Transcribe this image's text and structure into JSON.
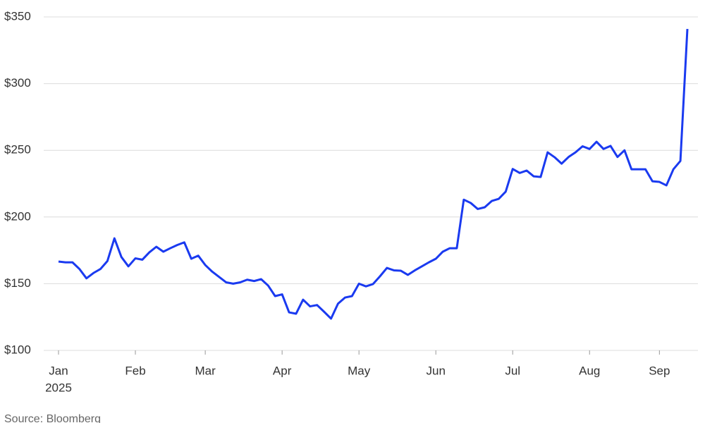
{
  "chart_data": {
    "type": "line",
    "ylim": [
      100,
      350
    ],
    "yticks": [
      {
        "value": 100,
        "label": "$100"
      },
      {
        "value": 150,
        "label": "$150"
      },
      {
        "value": 200,
        "label": "$200"
      },
      {
        "value": 250,
        "label": "$250"
      },
      {
        "value": 300,
        "label": "$300"
      },
      {
        "value": 350,
        "label": "$350"
      }
    ],
    "grid": true,
    "categories": [
      "Jan",
      null,
      null,
      null,
      null,
      null,
      null,
      null,
      null,
      null,
      null,
      "Feb",
      null,
      null,
      null,
      null,
      null,
      null,
      null,
      null,
      null,
      "Mar",
      null,
      null,
      null,
      null,
      null,
      null,
      null,
      null,
      null,
      null,
      "Apr",
      null,
      null,
      null,
      null,
      null,
      null,
      null,
      null,
      null,
      null,
      "May",
      null,
      null,
      null,
      null,
      null,
      null,
      null,
      null,
      null,
      null,
      "Jun",
      null,
      null,
      null,
      null,
      null,
      null,
      null,
      null,
      null,
      null,
      "Jul",
      null,
      null,
      null,
      null,
      null,
      null,
      null,
      null,
      null,
      null,
      "Aug",
      null,
      null,
      null,
      null,
      null,
      null,
      null,
      null,
      null,
      "Sep",
      null,
      null,
      null,
      null
    ],
    "year_label": "2025",
    "series": [
      {
        "color": "#1a3af0",
        "values": [
          166.6,
          166,
          166,
          161,
          154,
          158,
          161,
          167,
          184,
          170,
          163,
          169,
          168,
          173.5,
          177.7,
          174,
          176.6,
          179,
          181,
          168.7,
          171,
          164,
          159,
          155,
          151,
          150,
          151,
          153,
          152,
          153.4,
          148.6,
          140.7,
          142,
          128.5,
          127.5,
          138,
          133,
          134,
          129,
          123.8,
          135,
          139.6,
          140.7,
          150,
          148,
          149.7,
          155.5,
          161.8,
          160,
          159.7,
          156.6,
          160,
          163,
          166,
          168.7,
          174,
          176.6,
          176.6,
          213,
          210.5,
          206,
          207.3,
          212,
          213.6,
          219,
          236,
          233,
          234.8,
          230.5,
          230,
          248.5,
          244.8,
          240,
          245,
          248.5,
          253,
          251,
          256.4,
          251,
          253.3,
          245,
          250,
          235.8,
          235.8,
          235.8,
          226.8,
          226.3,
          223.7,
          235.8,
          242,
          341
        ]
      }
    ],
    "source": "Source: Bloomberg"
  }
}
